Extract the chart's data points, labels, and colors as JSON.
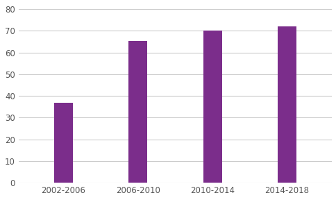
{
  "categories": [
    "2002-2006",
    "2006-2010",
    "2010-2014",
    "2014-2018"
  ],
  "values": [
    37,
    65.5,
    70,
    72
  ],
  "bar_color": "#7B2D8B",
  "background_color": "#ffffff",
  "ylim": [
    0,
    82
  ],
  "yticks": [
    0,
    10,
    20,
    30,
    40,
    50,
    60,
    70,
    80
  ],
  "grid_color": "#cccccc",
  "tick_color": "#555555",
  "bar_width": 0.25,
  "tick_fontsize": 8.5
}
